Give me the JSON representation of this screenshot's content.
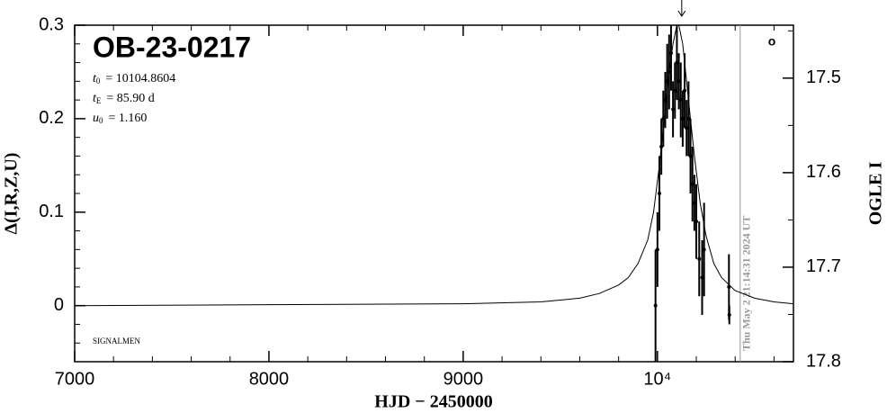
{
  "chart_data": {
    "type": "line",
    "title": "OB-23-0217",
    "params": [
      {
        "symbol": "t",
        "subscript": "0",
        "text": "= 10104.8604"
      },
      {
        "symbol": "t",
        "subscript": "E",
        "text": "= 85.90 d"
      },
      {
        "symbol": "u",
        "subscript": "0",
        "text": "= 1.160"
      }
    ],
    "note": "SIGNALMEN",
    "timestamp": "Thu May  2 21:14:31 2024 UT",
    "symbol": "o",
    "x_label": "HJD − 2450000",
    "y_label": "Δ(I,R,Z,U)",
    "y2_label": "OGLE I",
    "xlim": [
      7000,
      10700
    ],
    "xticks": [
      7000,
      8000,
      9000,
      {
        "value": 10000,
        "label": "10⁴"
      }
    ],
    "xminorticks": [
      7200,
      7400,
      7600,
      7800,
      8200,
      8400,
      8600,
      8800,
      9200,
      9400,
      9600,
      9800,
      10200,
      10400,
      10600
    ],
    "ylim": [
      -0.06,
      0.3
    ],
    "yticks": [
      {
        "value": 0,
        "label": "0"
      },
      0.1,
      0.2,
      0.3
    ],
    "yminorticks": [
      -0.04,
      -0.02,
      0.02,
      0.04,
      0.06,
      0.08,
      0.12,
      0.14,
      0.16,
      0.18,
      0.22,
      0.24,
      0.26,
      0.28
    ],
    "y2lim": [
      17.8,
      17.444
    ],
    "y2ticks": [
      17.5,
      17.6,
      17.7,
      17.8
    ],
    "y2minorticks": [
      17.45,
      17.55,
      17.65,
      17.75
    ],
    "current_time": 10426,
    "arrow_x": 10125,
    "color": "#000000",
    "time_color": "#999999",
    "model": {
      "x": [
        7000,
        8000,
        9000,
        9400,
        9600,
        9700,
        9800,
        9850,
        9900,
        9950,
        9980,
        10010,
        10040,
        10060,
        10080,
        10100,
        10110,
        10130,
        10150,
        10170,
        10190,
        10220,
        10250,
        10290,
        10330,
        10400,
        10500,
        10600,
        10700
      ],
      "values": [
        0,
        0.001,
        0.002,
        0.004,
        0.008,
        0.013,
        0.022,
        0.03,
        0.045,
        0.07,
        0.1,
        0.15,
        0.21,
        0.25,
        0.28,
        0.3,
        0.3,
        0.28,
        0.24,
        0.2,
        0.16,
        0.11,
        0.075,
        0.045,
        0.03,
        0.016,
        0.008,
        0.004,
        0.002
      ]
    },
    "observations": {
      "x": [
        9990,
        10000,
        10010,
        10020,
        10030,
        10040,
        10050,
        10060,
        10070,
        10080,
        10090,
        10100,
        10110,
        10120,
        10130,
        10140,
        10150,
        10160,
        10170,
        10180,
        10190,
        10200,
        10215,
        10230,
        10240,
        10368,
        10370
      ],
      "values": [
        0,
        0.06,
        0.12,
        0.17,
        0.2,
        0.22,
        0.24,
        0.25,
        0.27,
        0.21,
        0.23,
        0.26,
        0.24,
        0.22,
        0.2,
        0.23,
        0.19,
        0.2,
        0.16,
        0.13,
        0.11,
        0.09,
        0.05,
        0.03,
        0.06,
        0.02,
        -0.01
      ],
      "errors": [
        0.06,
        0.04,
        0.04,
        0.03,
        0.03,
        0.03,
        0.04,
        0.04,
        0.04,
        0.03,
        0.03,
        0.04,
        0.03,
        0.04,
        0.03,
        0.04,
        0.03,
        0.04,
        0.04,
        0.04,
        0.03,
        0.04,
        0.04,
        0.04,
        0.05,
        0.035,
        0.01
      ]
    }
  }
}
